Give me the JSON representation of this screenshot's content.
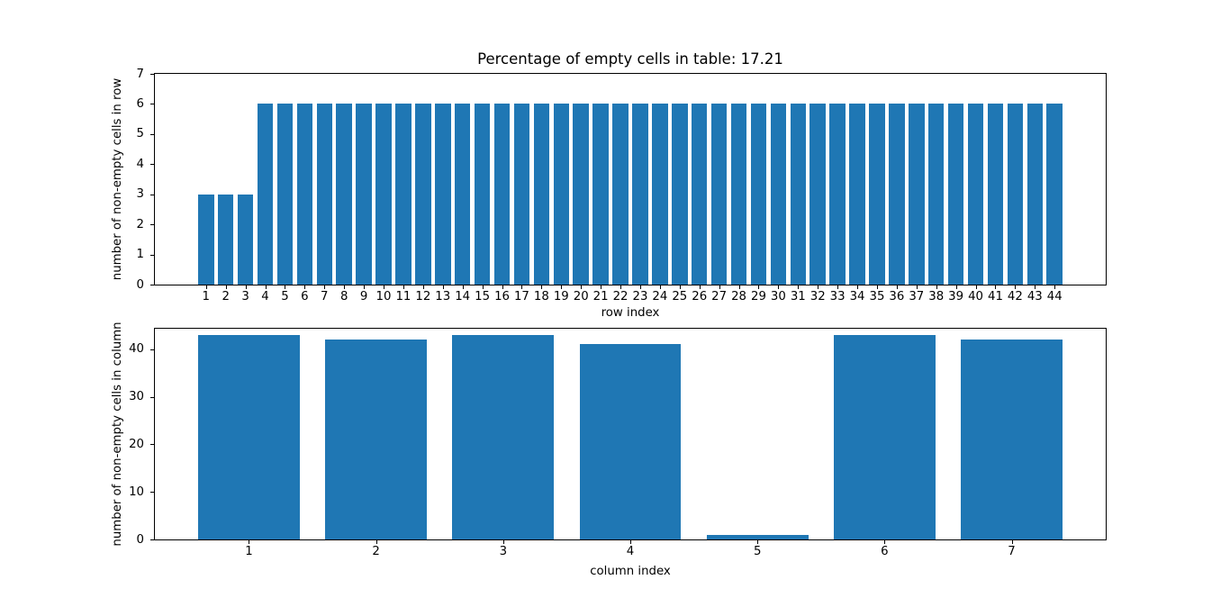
{
  "figure": {
    "background_color": "#ffffff",
    "bar_color": "#1f77b4",
    "spine_color": "#000000",
    "text_color": "#000000"
  },
  "chart_data": [
    {
      "type": "bar",
      "title": "Percentage of empty cells in table: 17.21",
      "xlabel": "row index",
      "ylabel": "number of non-empty cells in row",
      "categories": [
        1,
        2,
        3,
        4,
        5,
        6,
        7,
        8,
        9,
        10,
        11,
        12,
        13,
        14,
        15,
        16,
        17,
        18,
        19,
        20,
        21,
        22,
        23,
        24,
        25,
        26,
        27,
        28,
        29,
        30,
        31,
        32,
        33,
        34,
        35,
        36,
        37,
        38,
        39,
        40,
        41,
        42,
        43,
        44
      ],
      "values": [
        3,
        3,
        3,
        6,
        6,
        6,
        6,
        6,
        6,
        6,
        6,
        6,
        6,
        6,
        6,
        6,
        6,
        6,
        6,
        6,
        6,
        6,
        6,
        6,
        6,
        6,
        6,
        6,
        6,
        6,
        6,
        6,
        6,
        6,
        6,
        6,
        6,
        6,
        6,
        6,
        6,
        6,
        6,
        6
      ],
      "yticks": [
        0,
        1,
        2,
        3,
        4,
        5,
        6,
        7
      ],
      "xlim": [
        -1.59,
        46.59
      ],
      "ylim": [
        0,
        7
      ],
      "bar_width": 0.8,
      "grid": false,
      "legend": null
    },
    {
      "type": "bar",
      "title": "",
      "xlabel": "column index",
      "ylabel": "number of non-empty cells in column",
      "categories": [
        1,
        2,
        3,
        4,
        5,
        6,
        7
      ],
      "values": [
        43,
        42,
        43,
        41,
        1,
        43,
        42
      ],
      "yticks": [
        0,
        10,
        20,
        30,
        40
      ],
      "xlim": [
        0.26,
        7.74
      ],
      "ylim": [
        0,
        44.3
      ],
      "bar_width": 0.8,
      "grid": false,
      "legend": null
    }
  ]
}
